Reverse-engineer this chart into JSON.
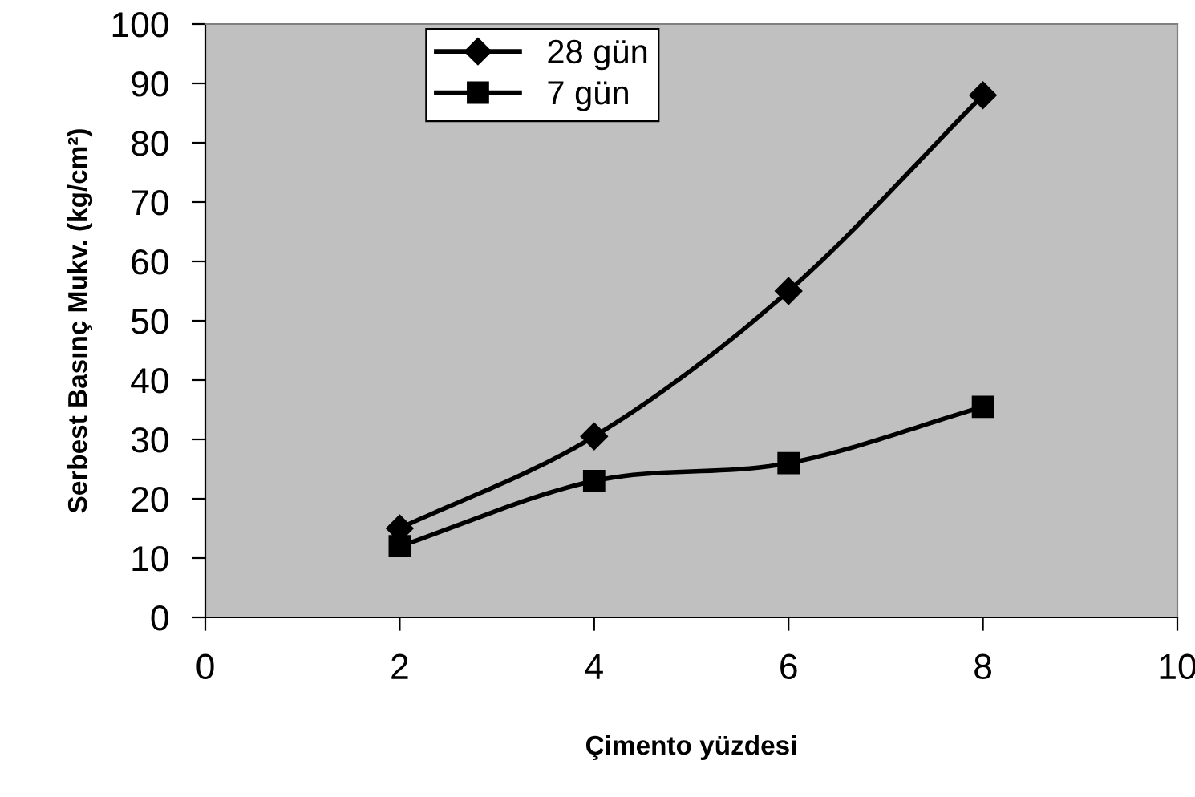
{
  "chart_data": {
    "type": "line",
    "xlabel": "Çimento yüzdesi",
    "ylabel": "Serbest Basınç Mukv. (kg/cm²)",
    "x": [
      2,
      4,
      6,
      8
    ],
    "series": [
      {
        "name": "28 gün",
        "color": "#000000",
        "values": [
          15,
          30.5,
          55,
          88
        ],
        "marker": "diamond"
      },
      {
        "name": "7 gün",
        "color": "#000000",
        "values": [
          12,
          23,
          26,
          35.5
        ],
        "marker": "square"
      }
    ],
    "xlim": [
      0,
      10
    ],
    "xticks": [
      0,
      2,
      4,
      6,
      8,
      10
    ],
    "ylim": [
      0,
      100
    ],
    "yticks": [
      0,
      10,
      20,
      30,
      40,
      50,
      60,
      70,
      80,
      90,
      100
    ],
    "grid": false,
    "legend": "top left",
    "line_style": "solid"
  }
}
